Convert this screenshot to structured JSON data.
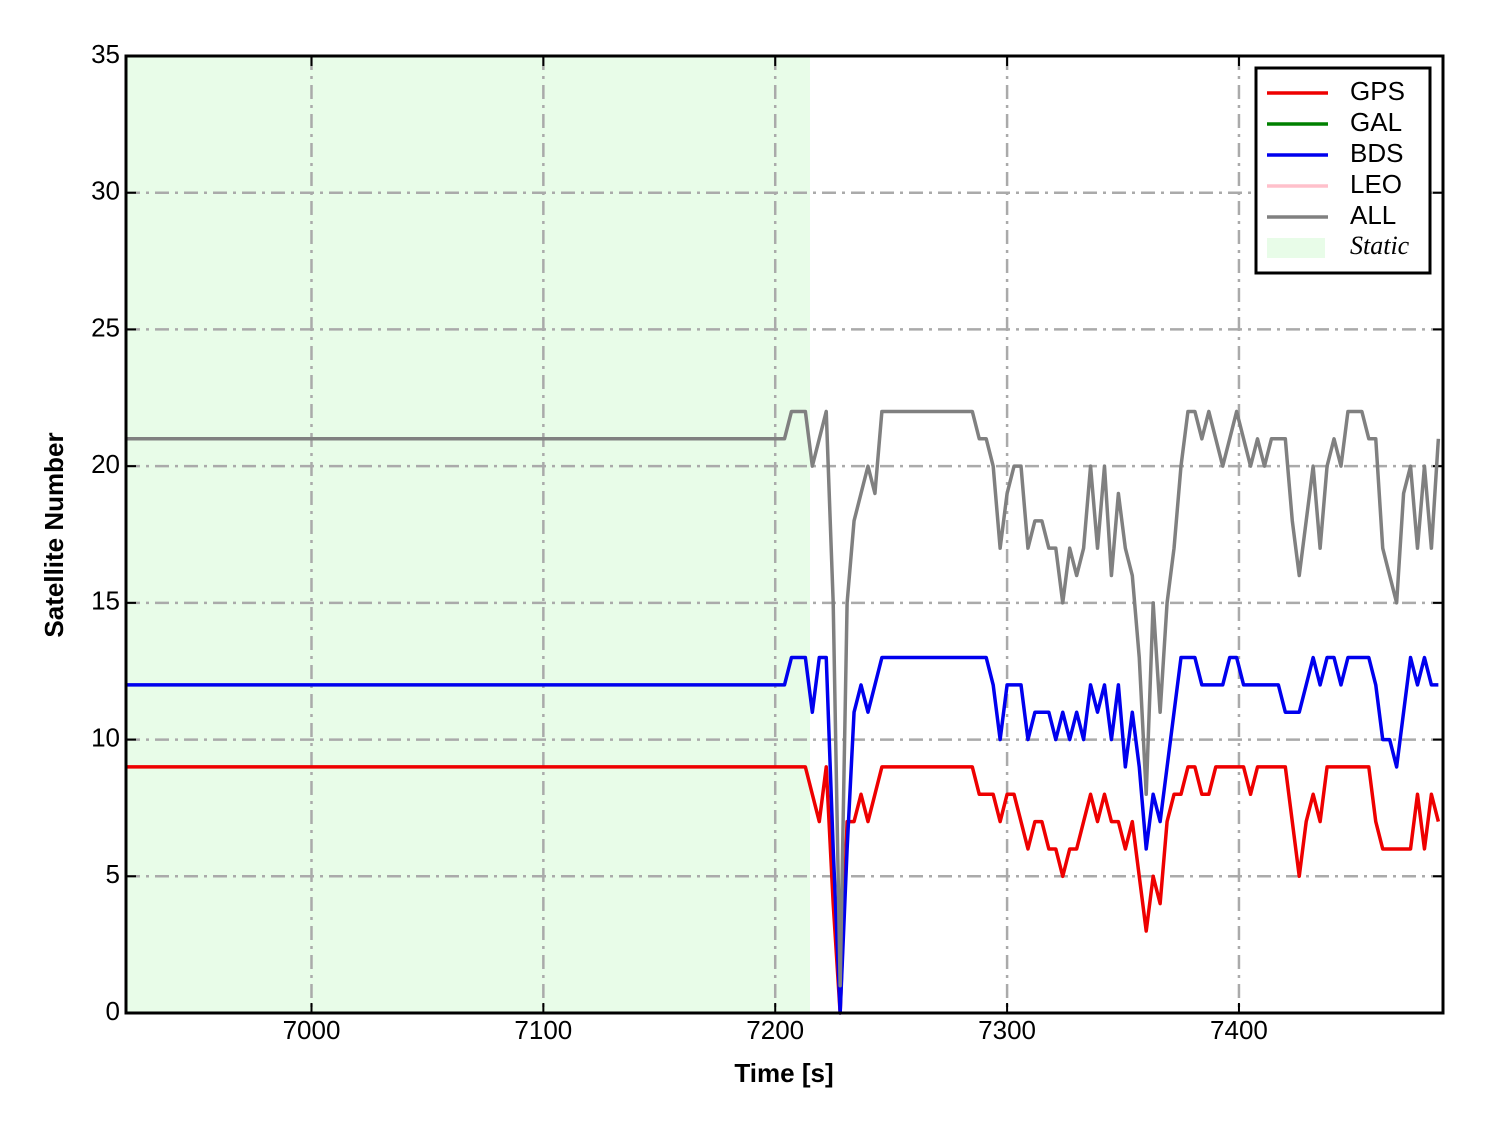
{
  "chart_data": {
    "type": "line",
    "xlabel": "Time [s]",
    "ylabel": "Satellite Number",
    "xlim": [
      6920,
      7488
    ],
    "ylim": [
      0,
      35
    ],
    "xticks": [
      7000,
      7100,
      7200,
      7300,
      7400
    ],
    "yticks": [
      0,
      5,
      10,
      15,
      20,
      25,
      30,
      35
    ],
    "grid": true,
    "legend": "upper right",
    "spans": [
      {
        "name": "Static",
        "color": "#e8fce8",
        "x0": 6920,
        "x1": 7215
      }
    ],
    "x": [
      6920,
      7204,
      7207,
      7210,
      7213,
      7216,
      7219,
      7222,
      7225,
      7228,
      7231,
      7234,
      7237,
      7240,
      7243,
      7246,
      7249,
      7252,
      7255,
      7258,
      7261,
      7264,
      7267,
      7270,
      7273,
      7276,
      7279,
      7282,
      7285,
      7288,
      7291,
      7294,
      7297,
      7300,
      7303,
      7306,
      7309,
      7312,
      7315,
      7318,
      7321,
      7324,
      7327,
      7330,
      7333,
      7336,
      7339,
      7342,
      7345,
      7348,
      7351,
      7354,
      7357,
      7360,
      7363,
      7366,
      7369,
      7372,
      7375,
      7378,
      7381,
      7384,
      7387,
      7390,
      7393,
      7396,
      7399,
      7402,
      7405,
      7408,
      7411,
      7414,
      7417,
      7420,
      7423,
      7426,
      7429,
      7432,
      7435,
      7438,
      7441,
      7444,
      7447,
      7450,
      7453,
      7456,
      7459,
      7462,
      7465,
      7468,
      7471,
      7474,
      7477,
      7480,
      7483,
      7486
    ],
    "series": [
      {
        "name": "GPS",
        "color": "#ee0000",
        "values": [
          9,
          9,
          9,
          9,
          9,
          8,
          7,
          9,
          4,
          0,
          7,
          7,
          8,
          7,
          8,
          9,
          9,
          9,
          9,
          9,
          9,
          9,
          9,
          9,
          9,
          9,
          9,
          9,
          9,
          8,
          8,
          8,
          7,
          8,
          8,
          7,
          6,
          7,
          7,
          6,
          6,
          5,
          6,
          6,
          7,
          8,
          7,
          8,
          7,
          7,
          6,
          7,
          5,
          3,
          5,
          4,
          7,
          8,
          8,
          9,
          9,
          8,
          8,
          9,
          9,
          9,
          9,
          9,
          8,
          9,
          9,
          9,
          9,
          9,
          7,
          5,
          7,
          8,
          7,
          9,
          9,
          9,
          9,
          9,
          9,
          9,
          7,
          6,
          6,
          6,
          6,
          6,
          8,
          6,
          8,
          7
        ]
      },
      {
        "name": "GAL",
        "color": "#008000",
        "values": [
          null,
          null,
          null,
          null,
          null,
          null,
          null,
          null,
          null,
          null,
          null,
          null,
          null,
          null,
          null,
          null,
          null,
          null,
          null,
          null,
          null,
          null,
          null,
          null,
          null,
          null,
          null,
          null,
          null,
          null,
          null,
          null,
          null,
          null,
          null,
          null,
          null,
          null,
          null,
          null,
          null,
          null,
          null,
          null,
          null,
          null,
          null,
          null,
          null,
          null,
          null,
          null,
          null,
          null,
          null,
          null,
          null,
          null,
          null,
          null,
          null,
          null,
          null,
          null,
          null,
          null,
          null,
          null,
          null,
          null,
          null,
          null,
          null,
          null,
          null,
          null,
          null,
          null,
          null,
          null,
          null,
          null,
          null,
          null,
          null,
          null,
          null,
          null,
          null,
          null,
          null,
          null,
          null,
          null,
          null,
          null
        ]
      },
      {
        "name": "BDS",
        "color": "#0000ee",
        "values": [
          12,
          12,
          13,
          13,
          13,
          11,
          13,
          13,
          6,
          0,
          6,
          11,
          12,
          11,
          12,
          13,
          13,
          13,
          13,
          13,
          13,
          13,
          13,
          13,
          13,
          13,
          13,
          13,
          13,
          13,
          13,
          12,
          10,
          12,
          12,
          12,
          10,
          11,
          11,
          11,
          10,
          11,
          10,
          11,
          10,
          12,
          11,
          12,
          10,
          12,
          9,
          11,
          9,
          6,
          8,
          7,
          9,
          11,
          13,
          13,
          13,
          12,
          12,
          12,
          12,
          13,
          13,
          12,
          12,
          12,
          12,
          12,
          12,
          11,
          11,
          11,
          12,
          13,
          12,
          13,
          13,
          12,
          13,
          13,
          13,
          13,
          12,
          10,
          10,
          9,
          11,
          13,
          12,
          13,
          12,
          12
        ]
      },
      {
        "name": "LEO",
        "color": "#ffc0cb",
        "values": [
          null,
          null,
          null,
          null,
          null,
          null,
          null,
          null,
          null,
          null,
          null,
          null,
          null,
          null,
          null,
          null,
          null,
          null,
          null,
          null,
          null,
          null,
          null,
          null,
          null,
          null,
          null,
          null,
          null,
          null,
          null,
          null,
          null,
          null,
          null,
          null,
          null,
          null,
          null,
          null,
          null,
          null,
          null,
          null,
          null,
          null,
          null,
          null,
          null,
          null,
          null,
          null,
          null,
          null,
          null,
          null,
          null,
          null,
          null,
          null,
          null,
          null,
          null,
          null,
          null,
          null,
          null,
          null,
          null,
          null,
          null,
          null,
          null,
          null,
          null,
          null,
          null,
          null,
          null,
          null,
          null,
          null,
          null,
          null,
          null,
          null,
          null,
          null,
          null,
          null,
          null,
          null,
          null,
          null,
          null,
          null
        ]
      },
      {
        "name": "ALL",
        "color": "#808080",
        "values": [
          21,
          21,
          22,
          22,
          22,
          20,
          21,
          22,
          15,
          1,
          15,
          18,
          19,
          20,
          19,
          22,
          22,
          22,
          22,
          22,
          22,
          22,
          22,
          22,
          22,
          22,
          22,
          22,
          22,
          21,
          21,
          20,
          17,
          19,
          20,
          20,
          17,
          18,
          18,
          17,
          17,
          15,
          17,
          16,
          17,
          20,
          17,
          20,
          16,
          19,
          17,
          16,
          13,
          8,
          15,
          11,
          15,
          17,
          20,
          22,
          22,
          21,
          22,
          21,
          20,
          21,
          22,
          21,
          20,
          21,
          20,
          21,
          21,
          21,
          18,
          16,
          18,
          20,
          17,
          20,
          21,
          20,
          22,
          22,
          22,
          21,
          21,
          17,
          16,
          15,
          19,
          20,
          17,
          20,
          17,
          21
        ]
      }
    ]
  }
}
